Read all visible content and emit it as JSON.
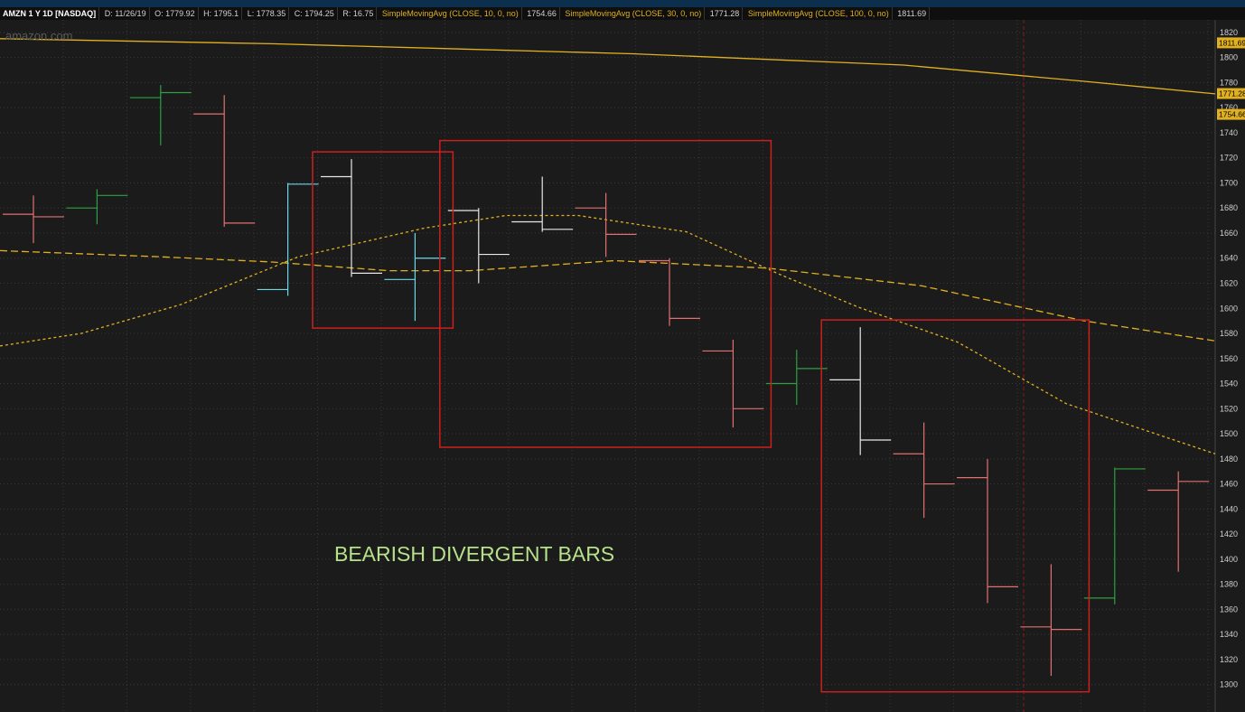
{
  "header": {
    "symbol": "AMZN 1 Y 1D [NASDAQ]",
    "date": "D: 11/26/19",
    "open": "O: 1779.92",
    "high": "H: 1795.1",
    "low": "L: 1778.35",
    "close": "C: 1794.25",
    "range": "R: 16.75",
    "sma10_label": "SimpleMovingAvg (CLOSE, 10, 0, no)",
    "sma10_value": "1754.66",
    "sma30_label": "SimpleMovingAvg (CLOSE, 30, 0, no)",
    "sma30_value": "1771.28",
    "sma100_label": "SimpleMovingAvg (CLOSE, 100, 0, no)",
    "sma100_value": "1811.69"
  },
  "watermark": "amazon.com",
  "annotation": "BEARISH DIVERGENT BARS",
  "colors": {
    "up": "#2ea043",
    "down": "#e07070",
    "neutral": "#e8e8e8",
    "cyan": "#6ad8e8",
    "ma": "#e0b020",
    "box": "#cc1f1f",
    "grid": "#3a3a3a",
    "axis_text": "#cfcfcf"
  },
  "chart_data": {
    "type": "ohlc",
    "y_ticks": [
      1820,
      1800,
      1780,
      1760,
      1740,
      1720,
      1700,
      1680,
      1660,
      1640,
      1620,
      1600,
      1580,
      1560,
      1540,
      1520,
      1500,
      1480,
      1460,
      1440,
      1420,
      1400,
      1380,
      1360,
      1340,
      1320,
      1300
    ],
    "y_range": [
      1294,
      1830
    ],
    "price_tags": [
      "1811.69",
      "1771.28",
      "1754.66"
    ],
    "bars": [
      {
        "o": 1675,
        "h": 1690,
        "l": 1652,
        "c": 1673,
        "color": "down"
      },
      {
        "o": 1680,
        "h": 1695,
        "l": 1667,
        "c": 1690,
        "color": "up"
      },
      {
        "o": 1768,
        "h": 1778,
        "l": 1730,
        "c": 1772,
        "color": "up"
      },
      {
        "o": 1755,
        "h": 1770,
        "l": 1665,
        "c": 1668,
        "color": "down"
      },
      {
        "o": 1615,
        "h": 1700,
        "l": 1610,
        "c": 1699,
        "color": "cyan"
      },
      {
        "o": 1705,
        "h": 1719,
        "l": 1625,
        "c": 1628,
        "color": "neutral"
      },
      {
        "o": 1623,
        "h": 1660,
        "l": 1590,
        "c": 1640,
        "color": "cyan"
      },
      {
        "o": 1678,
        "h": 1680,
        "l": 1620,
        "c": 1643,
        "color": "neutral"
      },
      {
        "o": 1669,
        "h": 1705,
        "l": 1661,
        "c": 1663,
        "color": "neutral"
      },
      {
        "o": 1680,
        "h": 1692,
        "l": 1641,
        "c": 1659,
        "color": "down"
      },
      {
        "o": 1638,
        "h": 1640,
        "l": 1586,
        "c": 1592,
        "color": "down"
      },
      {
        "o": 1566,
        "h": 1575,
        "l": 1505,
        "c": 1520,
        "color": "down"
      },
      {
        "o": 1540,
        "h": 1567,
        "l": 1523,
        "c": 1552,
        "color": "up"
      },
      {
        "o": 1543,
        "h": 1585,
        "l": 1483,
        "c": 1495,
        "color": "neutral"
      },
      {
        "o": 1484,
        "h": 1509,
        "l": 1433,
        "c": 1460,
        "color": "down"
      },
      {
        "o": 1465,
        "h": 1480,
        "l": 1365,
        "c": 1378,
        "color": "down"
      },
      {
        "o": 1346,
        "h": 1396,
        "l": 1307,
        "c": 1344,
        "color": "down"
      },
      {
        "o": 1369,
        "h": 1473,
        "l": 1364,
        "c": 1472,
        "color": "up"
      },
      {
        "o": 1455,
        "h": 1470,
        "l": 1390,
        "c": 1462,
        "color": "down"
      }
    ],
    "sma_long": [
      [
        0,
        1815
      ],
      [
        300,
        1811
      ],
      [
        700,
        1803
      ],
      [
        1000,
        1794
      ],
      [
        1200,
        1781
      ],
      [
        1345,
        1771
      ]
    ],
    "sma_mid": [
      [
        0,
        1646
      ],
      [
        180,
        1641
      ],
      [
        300,
        1637
      ],
      [
        430,
        1630
      ],
      [
        520,
        1630
      ],
      [
        680,
        1638
      ],
      [
        850,
        1632
      ],
      [
        1020,
        1618
      ],
      [
        1200,
        1590
      ],
      [
        1345,
        1574
      ]
    ],
    "sma_short": [
      [
        0,
        1570
      ],
      [
        90,
        1580
      ],
      [
        200,
        1603
      ],
      [
        330,
        1641
      ],
      [
        470,
        1664
      ],
      [
        560,
        1674
      ],
      [
        640,
        1674
      ],
      [
        760,
        1661
      ],
      [
        860,
        1628
      ],
      [
        950,
        1601
      ],
      [
        1060,
        1573
      ],
      [
        1180,
        1524
      ],
      [
        1345,
        1484
      ]
    ],
    "event_marker_x": 1133
  }
}
